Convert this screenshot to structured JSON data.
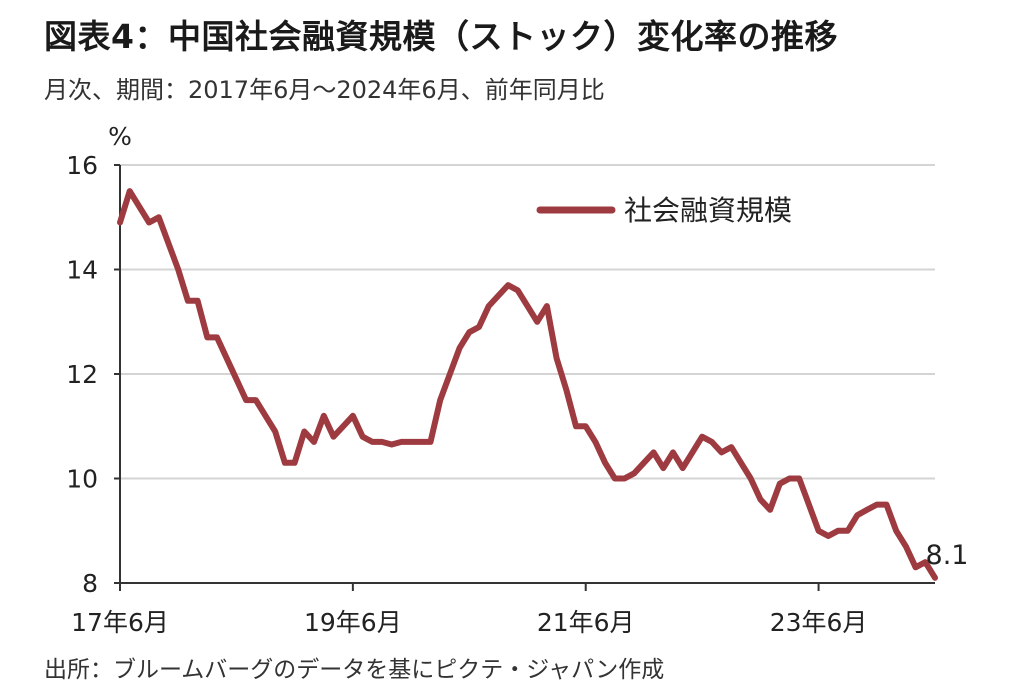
{
  "page": {
    "title": "図表4：中国社会融資規模（ストック）変化率の推移",
    "subtitle": "月次、期間：2017年6月～2024年6月、前年同月比",
    "source": "出所：ブルームバーグのデータを基にピクテ・ジャパン作成"
  },
  "chart_data": {
    "type": "line",
    "ylabel": "%",
    "ylim": [
      8,
      16
    ],
    "yticks": [
      8,
      10,
      12,
      14,
      16
    ],
    "xlim": [
      "2017-06",
      "2024-06"
    ],
    "xticks": [
      {
        "date": "2017-06",
        "label": "17年6月"
      },
      {
        "date": "2019-06",
        "label": "19年6月"
      },
      {
        "date": "2021-06",
        "label": "21年6月"
      },
      {
        "date": "2023-06",
        "label": "23年6月"
      }
    ],
    "grid": "horizontal",
    "legend_position": "top-right",
    "end_label": "8.1",
    "series": [
      {
        "name": "社会融資規模",
        "color": "#9e3b40",
        "points": [
          [
            "2017-06",
            14.9
          ],
          [
            "2017-07",
            15.5
          ],
          [
            "2017-08",
            15.2
          ],
          [
            "2017-09",
            14.9
          ],
          [
            "2017-10",
            15.0
          ],
          [
            "2017-11",
            14.5
          ],
          [
            "2017-12",
            14.0
          ],
          [
            "2018-01",
            13.4
          ],
          [
            "2018-02",
            13.4
          ],
          [
            "2018-03",
            12.7
          ],
          [
            "2018-04",
            12.7
          ],
          [
            "2018-05",
            12.3
          ],
          [
            "2018-06",
            11.9
          ],
          [
            "2018-07",
            11.5
          ],
          [
            "2018-08",
            11.5
          ],
          [
            "2018-09",
            11.2
          ],
          [
            "2018-10",
            10.9
          ],
          [
            "2018-11",
            10.3
          ],
          [
            "2018-12",
            10.3
          ],
          [
            "2019-01",
            10.9
          ],
          [
            "2019-02",
            10.7
          ],
          [
            "2019-03",
            11.2
          ],
          [
            "2019-04",
            10.8
          ],
          [
            "2019-05",
            11.0
          ],
          [
            "2019-06",
            11.2
          ],
          [
            "2019-07",
            10.8
          ],
          [
            "2019-08",
            10.7
          ],
          [
            "2019-09",
            10.7
          ],
          [
            "2019-10",
            10.65
          ],
          [
            "2019-11",
            10.7
          ],
          [
            "2019-12",
            10.7
          ],
          [
            "2020-01",
            10.7
          ],
          [
            "2020-02",
            10.7
          ],
          [
            "2020-03",
            11.5
          ],
          [
            "2020-04",
            12.0
          ],
          [
            "2020-05",
            12.5
          ],
          [
            "2020-06",
            12.8
          ],
          [
            "2020-07",
            12.9
          ],
          [
            "2020-08",
            13.3
          ],
          [
            "2020-09",
            13.5
          ],
          [
            "2020-10",
            13.7
          ],
          [
            "2020-11",
            13.6
          ],
          [
            "2020-12",
            13.3
          ],
          [
            "2021-01",
            13.0
          ],
          [
            "2021-02",
            13.3
          ],
          [
            "2021-03",
            12.3
          ],
          [
            "2021-04",
            11.7
          ],
          [
            "2021-05",
            11.0
          ],
          [
            "2021-06",
            11.0
          ],
          [
            "2021-07",
            10.7
          ],
          [
            "2021-08",
            10.3
          ],
          [
            "2021-09",
            10.0
          ],
          [
            "2021-10",
            10.0
          ],
          [
            "2021-11",
            10.1
          ],
          [
            "2021-12",
            10.3
          ],
          [
            "2022-01",
            10.5
          ],
          [
            "2022-02",
            10.2
          ],
          [
            "2022-03",
            10.5
          ],
          [
            "2022-04",
            10.2
          ],
          [
            "2022-05",
            10.5
          ],
          [
            "2022-06",
            10.8
          ],
          [
            "2022-07",
            10.7
          ],
          [
            "2022-08",
            10.5
          ],
          [
            "2022-09",
            10.6
          ],
          [
            "2022-10",
            10.3
          ],
          [
            "2022-11",
            10.0
          ],
          [
            "2022-12",
            9.6
          ],
          [
            "2023-01",
            9.4
          ],
          [
            "2023-02",
            9.9
          ],
          [
            "2023-03",
            10.0
          ],
          [
            "2023-04",
            10.0
          ],
          [
            "2023-05",
            9.5
          ],
          [
            "2023-06",
            9.0
          ],
          [
            "2023-07",
            8.9
          ],
          [
            "2023-08",
            9.0
          ],
          [
            "2023-09",
            9.0
          ],
          [
            "2023-10",
            9.3
          ],
          [
            "2023-11",
            9.4
          ],
          [
            "2023-12",
            9.5
          ],
          [
            "2024-01",
            9.5
          ],
          [
            "2024-02",
            9.0
          ],
          [
            "2024-03",
            8.7
          ],
          [
            "2024-04",
            8.3
          ],
          [
            "2024-05",
            8.4
          ],
          [
            "2024-06",
            8.1
          ]
        ]
      }
    ]
  }
}
